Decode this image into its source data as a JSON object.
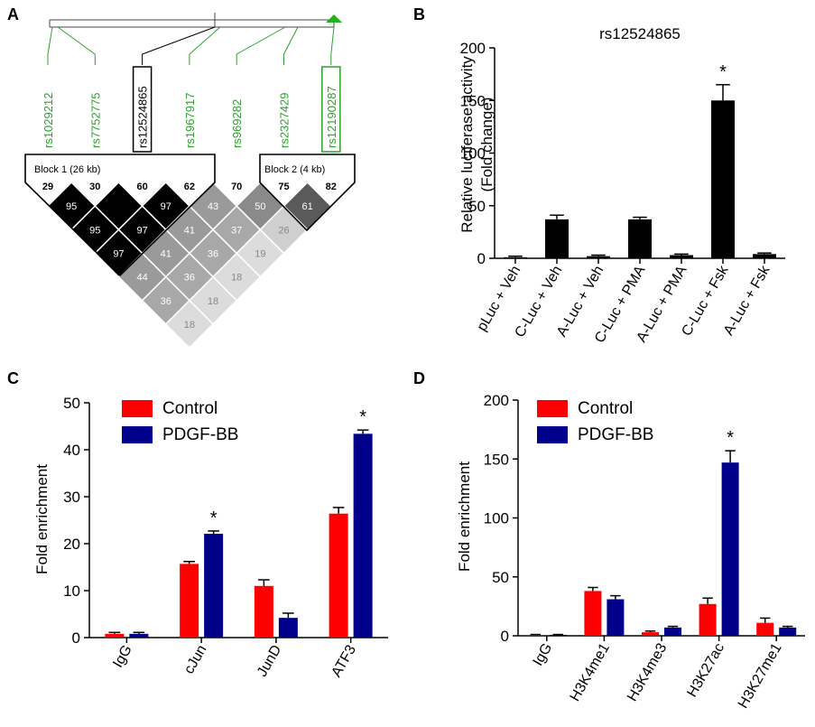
{
  "panel_labels": {
    "a": "A",
    "b": "B",
    "c": "C",
    "d": "D"
  },
  "colors": {
    "green": "#2ca02c",
    "green_marker": "#1fb31f",
    "black": "#000000",
    "control": "#ff0000",
    "pdgf": "#00008b"
  },
  "ld_plot": {
    "snps": [
      {
        "id": "rs1029212",
        "highlight": "none",
        "color": "green"
      },
      {
        "id": "rs7752775",
        "highlight": "none",
        "color": "green"
      },
      {
        "id": "rs12524865",
        "highlight": "box",
        "color": "black"
      },
      {
        "id": "rs1967917",
        "highlight": "none",
        "color": "green"
      },
      {
        "id": "rs969282",
        "highlight": "none",
        "color": "green"
      },
      {
        "id": "rs2327429",
        "highlight": "none",
        "color": "green"
      },
      {
        "id": "rs12190287",
        "highlight": "box",
        "color": "green"
      }
    ],
    "maf": [
      "29",
      "30",
      "60",
      "62",
      "70",
      "75",
      "82"
    ],
    "block1_label": "Block 1 (26 kb)",
    "block2_label": "Block 2 (4 kb)",
    "pairs": [
      {
        "i": 0,
        "j": 1,
        "v": "95",
        "shade": "#000000",
        "text": "#ffffff"
      },
      {
        "i": 1,
        "j": 2,
        "v": "",
        "shade": "#000000",
        "text": "#ffffff"
      },
      {
        "i": 2,
        "j": 3,
        "v": "97",
        "shade": "#000000",
        "text": "#ffffff"
      },
      {
        "i": 3,
        "j": 4,
        "v": "43",
        "shade": "#9a9a9a",
        "text": "#ffffff"
      },
      {
        "i": 4,
        "j": 5,
        "v": "50",
        "shade": "#8a8a8a",
        "text": "#ffffff"
      },
      {
        "i": 5,
        "j": 6,
        "v": "61",
        "shade": "#5a5a5a",
        "text": "#ffffff"
      },
      {
        "i": 0,
        "j": 2,
        "v": "95",
        "shade": "#000000",
        "text": "#ffffff"
      },
      {
        "i": 1,
        "j": 3,
        "v": "97",
        "shade": "#000000",
        "text": "#ffffff"
      },
      {
        "i": 2,
        "j": 4,
        "v": "41",
        "shade": "#9a9a9a",
        "text": "#ffffff"
      },
      {
        "i": 3,
        "j": 5,
        "v": "37",
        "shade": "#a8a8a8",
        "text": "#ffffff"
      },
      {
        "i": 4,
        "j": 6,
        "v": "26",
        "shade": "#cfcfcf",
        "text": "#888888"
      },
      {
        "i": 0,
        "j": 3,
        "v": "97",
        "shade": "#000000",
        "text": "#ffffff"
      },
      {
        "i": 1,
        "j": 4,
        "v": "41",
        "shade": "#9a9a9a",
        "text": "#ffffff"
      },
      {
        "i": 2,
        "j": 5,
        "v": "36",
        "shade": "#a8a8a8",
        "text": "#ffffff"
      },
      {
        "i": 3,
        "j": 6,
        "v": "19",
        "shade": "#dcdcdc",
        "text": "#888888"
      },
      {
        "i": 0,
        "j": 4,
        "v": "44",
        "shade": "#9a9a9a",
        "text": "#ffffff"
      },
      {
        "i": 1,
        "j": 5,
        "v": "36",
        "shade": "#a8a8a8",
        "text": "#ffffff"
      },
      {
        "i": 2,
        "j": 6,
        "v": "18",
        "shade": "#dcdcdc",
        "text": "#888888"
      },
      {
        "i": 0,
        "j": 5,
        "v": "36",
        "shade": "#a8a8a8",
        "text": "#ffffff"
      },
      {
        "i": 1,
        "j": 6,
        "v": "18",
        "shade": "#dcdcdc",
        "text": "#888888"
      },
      {
        "i": 0,
        "j": 6,
        "v": "18",
        "shade": "#dcdcdc",
        "text": "#888888"
      }
    ]
  },
  "chart_data": [
    {
      "panel": "B",
      "type": "bar",
      "title": "rs12524865",
      "ylabel": [
        "Relative luciferase activity",
        "(Fold change)"
      ],
      "categories": [
        "pLuc + Veh",
        "C-Luc + Veh",
        "A-Luc + Veh",
        "C-Luc + PMA",
        "A-Luc + PMA",
        "C-Luc + Fsk",
        "A-Luc + Fsk"
      ],
      "values": [
        1,
        37,
        2,
        37,
        3,
        150,
        4
      ],
      "errors": [
        1,
        4,
        1,
        2,
        1,
        15,
        1
      ],
      "significant": [
        false,
        false,
        false,
        false,
        false,
        true,
        false
      ],
      "sig_marker": "*",
      "ylim": [
        0,
        200
      ],
      "yticks": [
        "0",
        "50",
        "100",
        "150",
        "200"
      ],
      "color": "#000000"
    },
    {
      "panel": "C",
      "type": "bar",
      "ylabel": "Fold enrichment",
      "categories": [
        "IgG",
        "cJun",
        "JunD",
        "ATF3"
      ],
      "series": [
        {
          "name": "Control",
          "values": [
            0.8,
            15.7,
            11.0,
            26.4
          ],
          "errors": [
            0.3,
            0.5,
            1.3,
            1.3
          ],
          "color": "#ff0000"
        },
        {
          "name": "PDGF-BB",
          "values": [
            0.8,
            22.1,
            4.2,
            43.4
          ],
          "errors": [
            0.3,
            0.6,
            1.0,
            0.8
          ],
          "color": "#00008b"
        }
      ],
      "significant": [
        false,
        true,
        false,
        true
      ],
      "sig_marker": "*",
      "ylim": [
        0,
        50
      ],
      "yticks": [
        "0",
        "10",
        "20",
        "30",
        "40",
        "50"
      ],
      "legend": "top-left"
    },
    {
      "panel": "D",
      "type": "bar",
      "ylabel": "Fold enrichment",
      "categories": [
        "IgG",
        "H3K4me1",
        "H3K4me3",
        "H3K27ac",
        "H3K27me1"
      ],
      "series": [
        {
          "name": "Control",
          "values": [
            0.8,
            38,
            3,
            27,
            11
          ],
          "errors": [
            0.3,
            3,
            1,
            5,
            4
          ],
          "color": "#ff0000"
        },
        {
          "name": "PDGF-BB",
          "values": [
            0.8,
            31,
            7,
            147,
            7
          ],
          "errors": [
            0.3,
            3,
            1,
            10,
            1
          ],
          "color": "#00008b"
        }
      ],
      "significant": [
        false,
        false,
        false,
        true,
        false
      ],
      "sig_marker": "*",
      "ylim": [
        0,
        200
      ],
      "yticks": [
        "0",
        "50",
        "100",
        "150",
        "200"
      ],
      "legend": "top-left"
    }
  ]
}
